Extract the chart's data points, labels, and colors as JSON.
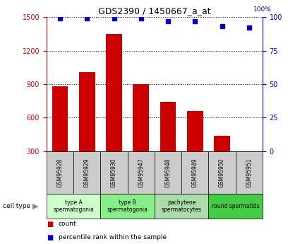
{
  "title": "GDS2390 / 1450667_a_at",
  "samples": [
    "GSM95928",
    "GSM95929",
    "GSM95930",
    "GSM95947",
    "GSM95948",
    "GSM95949",
    "GSM95950",
    "GSM95951"
  ],
  "counts": [
    880,
    1010,
    1350,
    900,
    740,
    660,
    440,
    295
  ],
  "percentiles": [
    99,
    99,
    99,
    99,
    97,
    97,
    93,
    92
  ],
  "ylim_left": [
    300,
    1500
  ],
  "ylim_right": [
    0,
    100
  ],
  "yticks_left": [
    300,
    600,
    900,
    1200,
    1500
  ],
  "yticks_right": [
    0,
    25,
    50,
    75,
    100
  ],
  "bar_color": "#cc0000",
  "marker_color": "#0000cc",
  "cell_groups": [
    {
      "label": "type A\nspermatogonia",
      "start": 0,
      "end": 2,
      "color": "#ccffcc"
    },
    {
      "label": "type B\nspermatogonia",
      "start": 2,
      "end": 4,
      "color": "#88ee88"
    },
    {
      "label": "pachytene\nspermatocytes",
      "start": 4,
      "end": 6,
      "color": "#aaddaa"
    },
    {
      "label": "round spermatids",
      "start": 6,
      "end": 8,
      "color": "#44cc44"
    }
  ],
  "background_color": "#ffffff",
  "tick_area_color": "#cccccc",
  "legend_count_color": "#cc0000",
  "legend_pct_color": "#0000cc"
}
